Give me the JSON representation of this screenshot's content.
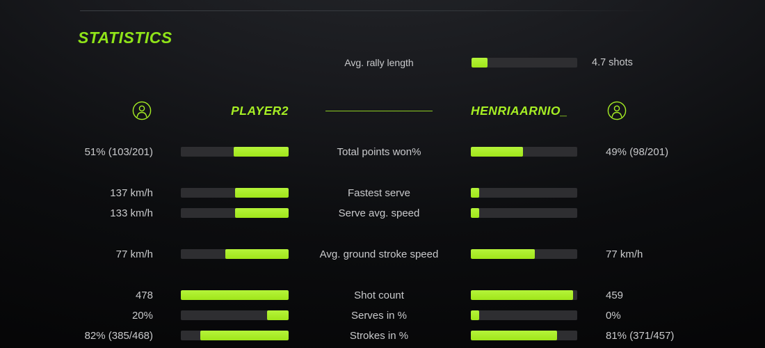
{
  "title": "STATISTICS",
  "colors": {
    "accent": "#a6ee24",
    "accent_title": "#8fe319",
    "bar_track": "#2e2e31",
    "text": "#c9cacc",
    "background_dark": "#050506",
    "background_light": "#26282c"
  },
  "rally": {
    "label": "Avg. rally length",
    "value": "4.7 shots",
    "fill_pct": 15
  },
  "players": {
    "left": "PLAYER2",
    "right": "HENRIAARNIO_",
    "left_icon": "user-icon",
    "right_icon": "user-icon"
  },
  "rows": [
    {
      "label": "Total points won%",
      "left_value": "51% (103/201)",
      "right_value": "49% (98/201)",
      "left_pct": 51,
      "right_pct": 49
    },
    {
      "label": "Fastest serve",
      "left_value": "137 km/h",
      "right_value": "",
      "left_pct": 50,
      "right_pct": 8
    },
    {
      "label": "Serve avg. speed",
      "left_value": "133 km/h",
      "right_value": "",
      "left_pct": 50,
      "right_pct": 8
    },
    {
      "label": "Avg. ground stroke speed",
      "left_value": "77 km/h",
      "right_value": "77 km/h",
      "left_pct": 59,
      "right_pct": 60
    },
    {
      "label": "Shot count",
      "left_value": "478",
      "right_value": "459",
      "left_pct": 100,
      "right_pct": 96
    },
    {
      "label": "Serves in %",
      "left_value": "20%",
      "right_value": "0%",
      "left_pct": 20,
      "right_pct": 8
    },
    {
      "label": "Strokes in %",
      "left_value": "82% (385/468)",
      "right_value": "81% (371/457)",
      "left_pct": 82,
      "right_pct": 81
    }
  ]
}
